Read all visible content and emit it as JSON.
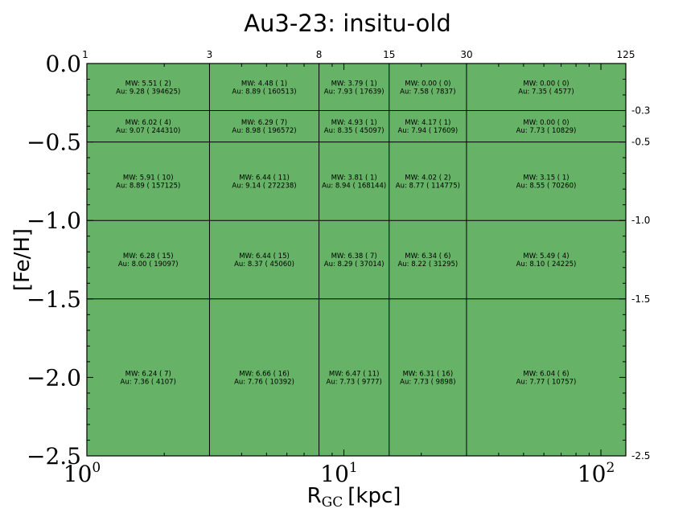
{
  "chart_data": {
    "type": "heatmap",
    "title": "Au3-23: insitu-old",
    "xlabel": "R",
    "xlabel_sub": "GC",
    "xlabel_unit": "[kpc]",
    "ylabel": "[Fe/H]",
    "xscale": "log",
    "xlim": [
      1,
      125
    ],
    "ylim": [
      -2.5,
      0.0
    ],
    "fill_color": "#66b266",
    "x_bin_edges": [
      1,
      3,
      8,
      15,
      30,
      125
    ],
    "y_bin_edges": [
      0.0,
      -0.3,
      -0.5,
      -1.0,
      -1.5,
      -2.5
    ],
    "top_tick_labels": [
      "1",
      "3",
      "8",
      "15",
      "30",
      "125"
    ],
    "right_tick_labels": [
      "-0.3",
      "-0.5",
      "-1.0",
      "-1.5",
      "-2.5"
    ],
    "bottom_tick_labels": [
      {
        "base": "10",
        "exp": "0",
        "value": 1
      },
      {
        "base": "10",
        "exp": "1",
        "value": 10
      },
      {
        "base": "10",
        "exp": "2",
        "value": 100
      }
    ],
    "left_tick_labels": [
      {
        "text": "0.0",
        "value": 0.0
      },
      {
        "text": "−0.5",
        "value": -0.5
      },
      {
        "text": "−1.0",
        "value": -1.0
      },
      {
        "text": "−1.5",
        "value": -1.5
      },
      {
        "text": "−2.0",
        "value": -2.0
      },
      {
        "text": "−2.5",
        "value": -2.5
      }
    ],
    "cells": [
      [
        {
          "mw": "MW: 5.51 ( 2)",
          "au": "Au: 9.28 ( 394625)"
        },
        {
          "mw": "MW: 4.48 ( 1)",
          "au": "Au: 8.89 ( 160513)"
        },
        {
          "mw": "MW: 3.79 ( 1)",
          "au": "Au: 7.93 ( 17639)"
        },
        {
          "mw": "MW: 0.00 ( 0)",
          "au": "Au: 7.58 ( 7837)"
        },
        {
          "mw": "MW: 0.00 ( 0)",
          "au": "Au: 7.35 ( 4577)"
        }
      ],
      [
        {
          "mw": "MW: 6.02 ( 4)",
          "au": "Au: 9.07 ( 244310)"
        },
        {
          "mw": "MW: 6.29 ( 7)",
          "au": "Au: 8.98 ( 196572)"
        },
        {
          "mw": "MW: 4.93 ( 1)",
          "au": "Au: 8.35 ( 45097)"
        },
        {
          "mw": "MW: 4.17 ( 1)",
          "au": "Au: 7.94 ( 17609)"
        },
        {
          "mw": "MW: 0.00 ( 0)",
          "au": "Au: 7.73 ( 10829)"
        }
      ],
      [
        {
          "mw": "MW: 5.91 ( 10)",
          "au": "Au: 8.89 ( 157125)"
        },
        {
          "mw": "MW: 6.44 ( 11)",
          "au": "Au: 9.14 ( 272238)"
        },
        {
          "mw": "MW: 3.81 ( 1)",
          "au": "Au: 8.94 ( 168144)"
        },
        {
          "mw": "MW: 4.02 ( 2)",
          "au": "Au: 8.77 ( 114775)"
        },
        {
          "mw": "MW: 3.15 ( 1)",
          "au": "Au: 8.55 ( 70260)"
        }
      ],
      [
        {
          "mw": "MW: 6.28 ( 15)",
          "au": "Au: 8.00 ( 19097)"
        },
        {
          "mw": "MW: 6.44 ( 15)",
          "au": "Au: 8.37 ( 45060)"
        },
        {
          "mw": "MW: 6.38 ( 7)",
          "au": "Au: 8.29 ( 37014)"
        },
        {
          "mw": "MW: 6.34 ( 6)",
          "au": "Au: 8.22 ( 31295)"
        },
        {
          "mw": "MW: 5.49 ( 4)",
          "au": "Au: 8.10 ( 24225)"
        }
      ],
      [
        {
          "mw": "MW: 6.24 ( 7)",
          "au": "Au: 7.36 ( 4107)"
        },
        {
          "mw": "MW: 6.66 ( 16)",
          "au": "Au: 7.76 ( 10392)"
        },
        {
          "mw": "MW: 6.47 ( 11)",
          "au": "Au: 7.73 ( 9777)"
        },
        {
          "mw": "MW: 6.31 ( 16)",
          "au": "Au: 7.73 ( 9898)"
        },
        {
          "mw": "MW: 6.04 ( 6)",
          "au": "Au: 7.77 ( 10757)"
        }
      ]
    ]
  }
}
